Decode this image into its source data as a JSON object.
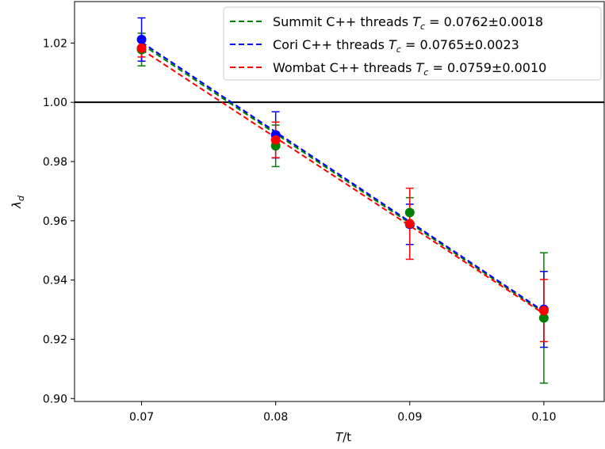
{
  "chart_data": {
    "type": "scatter",
    "xlabel_var": "T",
    "xlabel_rest": "/t",
    "ylabel_var": "λ",
    "ylabel_sub": "d",
    "xlim": [
      0.065,
      0.1045
    ],
    "ylim": [
      0.899,
      1.034
    ],
    "xticks": [
      "0.07",
      "0.08",
      "0.09",
      "0.10"
    ],
    "yticks": [
      "0.90",
      "0.92",
      "0.94",
      "0.96",
      "0.98",
      "1.00",
      "1.02"
    ],
    "reference_line": {
      "y": 1.0,
      "color": "#000000"
    },
    "series": [
      {
        "name": "Summit C++ threads",
        "legend_prefix": "Summit C++ threads ",
        "tc_value": " = 0.0762±0.0018",
        "color": "#008000",
        "x": [
          0.07,
          0.08,
          0.09,
          0.1
        ],
        "y": [
          1.0178,
          0.9853,
          0.9628,
          0.9272
        ],
        "err": [
          0.0055,
          0.007,
          0.005,
          0.022
        ],
        "fit": {
          "x": [
            0.07,
            0.1
          ],
          "y": [
            1.0196,
            0.929
          ]
        }
      },
      {
        "name": "Cori C++ threads",
        "legend_prefix": "Cori C++ threads ",
        "tc_value": " = 0.0765±0.0023",
        "color": "#0000ff",
        "x": [
          0.07,
          0.08,
          0.09,
          0.1
        ],
        "y": [
          1.0212,
          0.989,
          0.9588,
          0.9301
        ],
        "err": [
          0.0073,
          0.0078,
          0.0068,
          0.0128
        ],
        "fit": {
          "x": [
            0.07,
            0.1
          ],
          "y": [
            1.0203,
            0.9294
          ]
        }
      },
      {
        "name": "Wombat C++ threads",
        "legend_prefix": "Wombat C++ threads ",
        "tc_value": " = 0.0759±0.0010",
        "color": "#ff0000",
        "x": [
          0.07,
          0.08,
          0.09,
          0.1
        ],
        "y": [
          1.0183,
          0.9873,
          0.959,
          0.9297
        ],
        "err": [
          0.003,
          0.006,
          0.012,
          0.0105
        ],
        "fit": {
          "x": [
            0.07,
            0.1
          ],
          "y": [
            1.0178,
            0.9286
          ]
        }
      }
    ],
    "legend": {
      "placement": "top-right",
      "tc_symbol": "T",
      "tc_sub": "c"
    }
  }
}
